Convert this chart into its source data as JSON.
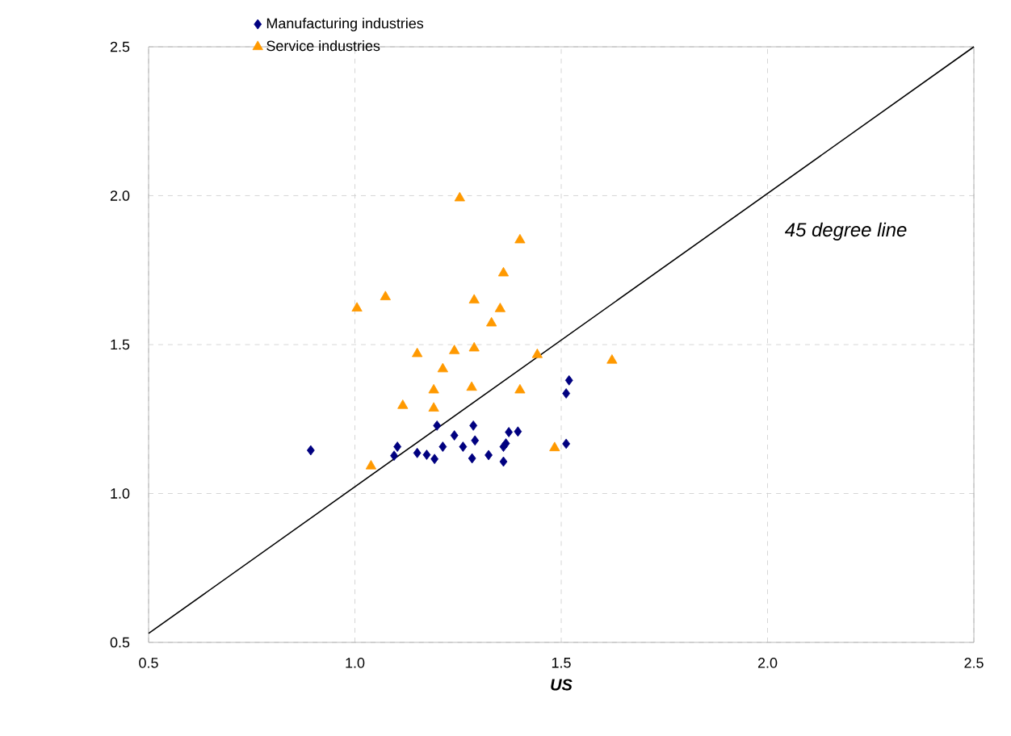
{
  "chart_data": {
    "type": "scatter",
    "xlabel": "US",
    "xlim": [
      0.5,
      2.5
    ],
    "ylim": [
      0.5,
      2.5
    ],
    "xticks": [
      0.5,
      {
        "value": 1,
        "label": "1.0"
      },
      1.5,
      {
        "value": 2,
        "label": "2.0"
      },
      2.5
    ],
    "yticks": [
      0.5,
      {
        "value": 1,
        "label": "1.0"
      },
      1.5,
      {
        "value": 2,
        "label": "2.0"
      },
      2.5
    ],
    "grid": true,
    "legend": "top left",
    "annotations": [
      "45 degree line"
    ],
    "series": [
      {
        "name": "Manufacturing industries",
        "color": "#000080",
        "marker": "diamond",
        "x": [
          0.893,
          1.103,
          1.095,
          1.151,
          1.174,
          1.193,
          1.199,
          1.213,
          1.241,
          1.262,
          1.287,
          1.291,
          1.284,
          1.324,
          1.36,
          1.366,
          1.36,
          1.373,
          1.395,
          1.512,
          1.512,
          1.519
        ],
        "values": [
          1.145,
          1.157,
          1.127,
          1.136,
          1.13,
          1.116,
          1.228,
          1.157,
          1.195,
          1.157,
          1.228,
          1.178,
          1.118,
          1.129,
          1.157,
          1.168,
          1.107,
          1.206,
          1.208,
          1.167,
          1.336,
          1.38
        ]
      },
      {
        "name": "Service industries",
        "color": "#ff9900",
        "marker": "triangle",
        "x": [
          1.005,
          1.074,
          1.254,
          1.4,
          1.36,
          1.289,
          1.352,
          1.331,
          1.151,
          1.241,
          1.289,
          1.442,
          1.623,
          1.213,
          1.191,
          1.283,
          1.4,
          1.116,
          1.191,
          1.484,
          1.039
        ],
        "values": [
          1.622,
          1.66,
          1.992,
          1.851,
          1.74,
          1.649,
          1.62,
          1.572,
          1.469,
          1.479,
          1.488,
          1.466,
          1.447,
          1.418,
          1.347,
          1.356,
          1.347,
          1.295,
          1.286,
          1.153,
          1.092
        ]
      },
      {
        "type": "line",
        "color": "#000000",
        "marker": "none",
        "line_style": "solid",
        "x": [
          0.5,
          2.5
        ],
        "values": [
          0.53,
          2.5
        ]
      }
    ]
  }
}
